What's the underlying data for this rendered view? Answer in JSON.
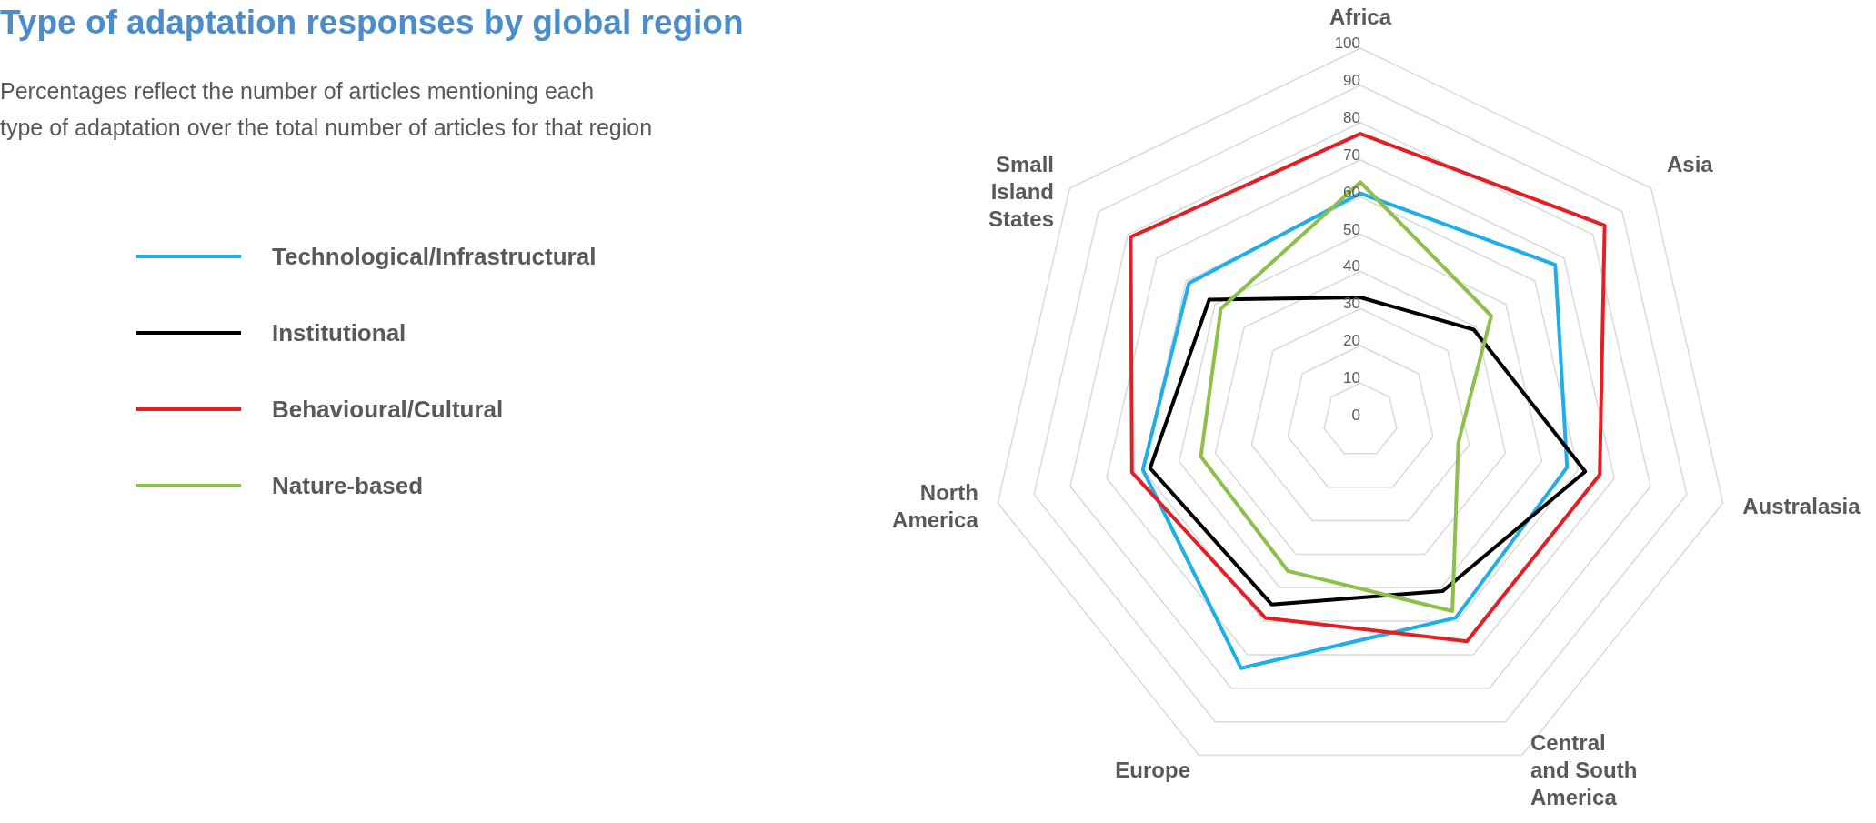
{
  "chart_data": {
    "type": "radar",
    "title": "Type of adaptation responses by global region",
    "subtitle": "Percentages reflect the number of articles mentioning each\ntype of adaptation over the total number of articles for that region",
    "categories": [
      "Africa",
      "Asia",
      "Australasia",
      "Central and South America",
      "Europe",
      "North America",
      "Small Island States"
    ],
    "series": [
      {
        "name": "Technological/Infrastructural",
        "color": "#1eaee8",
        "values": [
          61,
          67,
          57,
          59,
          74,
          60,
          59
        ]
      },
      {
        "name": "Institutional",
        "color": "#000000",
        "values": [
          33,
          39,
          62,
          51,
          55,
          58,
          52
        ]
      },
      {
        "name": "Behavioural/Cultural",
        "color": "#e31e24",
        "values": [
          77,
          84,
          66,
          66,
          59,
          63,
          79
        ]
      },
      {
        "name": "Nature-based",
        "color": "#8dc04b",
        "values": [
          64,
          45,
          27,
          57,
          45,
          44,
          48
        ]
      }
    ],
    "ylim": [
      0,
      100
    ],
    "yticks": [
      0,
      10,
      20,
      30,
      40,
      50,
      60,
      70,
      80,
      90,
      100
    ],
    "grid": true,
    "legend": "left",
    "marker": "none",
    "line_style": "solid"
  }
}
